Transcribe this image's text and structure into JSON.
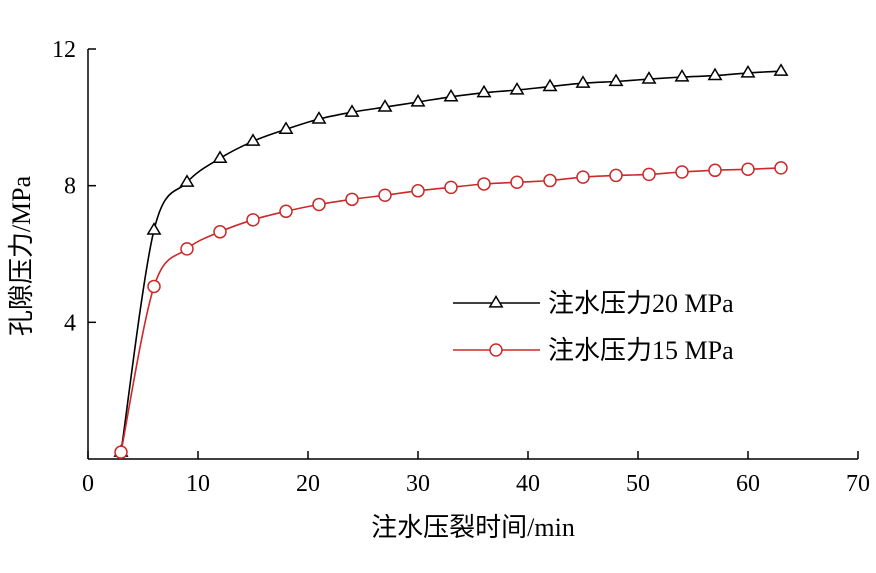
{
  "chart_data": {
    "type": "line",
    "xlabel": "注水压裂时间/min",
    "ylabel": "孔隙压力/MPa",
    "xlim": [
      0,
      70
    ],
    "ylim": [
      0,
      12
    ],
    "x_ticks": [
      0,
      10,
      20,
      30,
      40,
      50,
      60,
      70
    ],
    "y_ticks": [
      4,
      8,
      12
    ],
    "grid": false,
    "legend_position": "center-right",
    "x": [
      3,
      6,
      9,
      12,
      15,
      18,
      21,
      24,
      27,
      30,
      33,
      36,
      39,
      42,
      45,
      48,
      51,
      54,
      57,
      60,
      63
    ],
    "series": [
      {
        "name": "注水压力20 MPa",
        "color": "#000000",
        "marker": "triangle",
        "values": [
          0.2,
          6.7,
          8.1,
          8.8,
          9.3,
          9.65,
          9.95,
          10.15,
          10.3,
          10.45,
          10.6,
          10.72,
          10.8,
          10.9,
          11.0,
          11.05,
          11.12,
          11.18,
          11.22,
          11.3,
          11.35
        ]
      },
      {
        "name": "注水压力15 MPa",
        "color": "#cc2a2a",
        "marker": "circle",
        "values": [
          0.2,
          5.05,
          6.15,
          6.65,
          7.0,
          7.25,
          7.45,
          7.6,
          7.72,
          7.85,
          7.95,
          8.05,
          8.1,
          8.15,
          8.25,
          8.3,
          8.33,
          8.4,
          8.45,
          8.48,
          8.52
        ]
      }
    ]
  }
}
